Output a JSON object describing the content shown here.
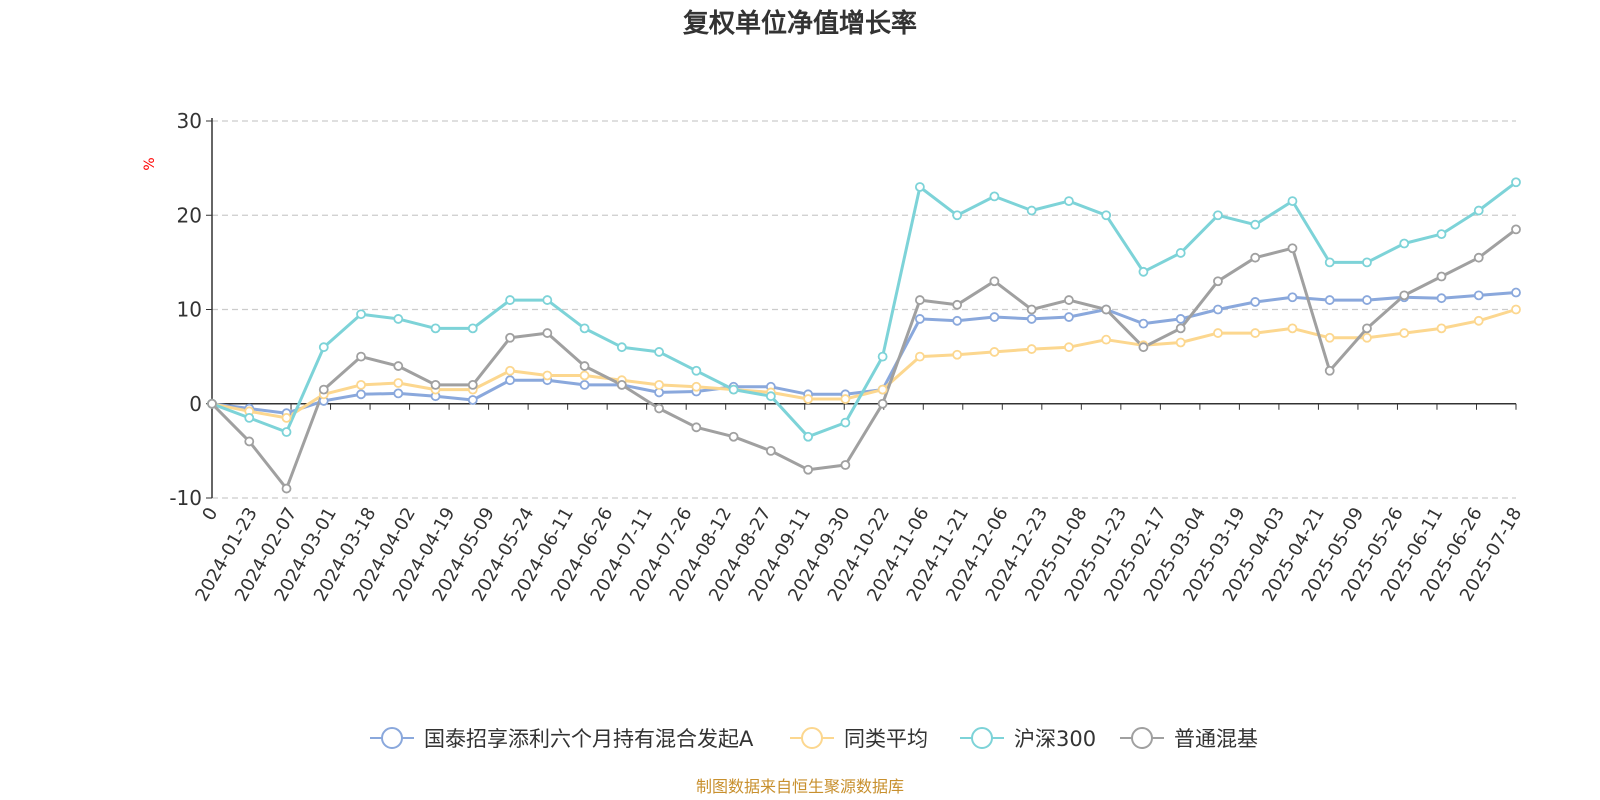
{
  "chart_data": {
    "type": "line",
    "title": "复权单位净值增长率",
    "ylabel": "%",
    "ylim": [
      -10,
      30
    ],
    "yticks": [
      -10,
      0,
      10,
      20,
      30
    ],
    "grid": true,
    "legend_position": "bottom",
    "x_tick_labels": [
      "0",
      "2024-01-23",
      "2024-02-07",
      "2024-03-01",
      "2024-03-18",
      "2024-04-02",
      "2024-04-19",
      "2024-05-09",
      "2024-05-24",
      "2024-06-11",
      "2024-06-26",
      "2024-07-11",
      "2024-07-26",
      "2024-08-12",
      "2024-08-27",
      "2024-09-11",
      "2024-09-30",
      "2024-10-22",
      "2024-11-06",
      "2024-11-21",
      "2024-12-06",
      "2024-12-23",
      "2025-01-08",
      "2025-01-23",
      "2025-02-17",
      "2025-03-04",
      "2025-03-19",
      "2025-04-03",
      "2025-04-21",
      "2025-05-09",
      "2025-05-26",
      "2025-06-11",
      "2025-06-26",
      "2025-07-18"
    ],
    "series": [
      {
        "name": "国泰招享添利六个月持有混合发起A",
        "color": "#8aa8dc",
        "values": [
          0,
          -0.5,
          -1.0,
          0.3,
          1.0,
          1.1,
          0.8,
          0.4,
          2.5,
          2.5,
          2.0,
          2.0,
          1.2,
          1.3,
          1.8,
          1.8,
          1.0,
          1.0,
          1.5,
          9.0,
          8.8,
          9.2,
          9.0,
          9.2,
          10.0,
          8.5,
          9.0,
          10.0,
          10.8,
          11.3,
          11.0,
          11.0,
          11.3,
          11.2,
          11.5,
          11.8
        ]
      },
      {
        "name": "同类平均",
        "color": "#fcd78f",
        "values": [
          0,
          -0.8,
          -1.5,
          1.0,
          2.0,
          2.2,
          1.5,
          1.5,
          3.5,
          3.0,
          3.0,
          2.5,
          2.0,
          1.8,
          1.5,
          1.2,
          0.5,
          0.5,
          1.5,
          5.0,
          5.2,
          5.5,
          5.8,
          6.0,
          6.8,
          6.2,
          6.5,
          7.5,
          7.5,
          8.0,
          7.0,
          7.0,
          7.5,
          8.0,
          8.8,
          10.0
        ]
      },
      {
        "name": "沪深300",
        "color": "#7dd3d8",
        "values": [
          0,
          -1.5,
          -3.0,
          6.0,
          9.5,
          9.0,
          8.0,
          8.0,
          11.0,
          11.0,
          8.0,
          6.0,
          5.5,
          3.5,
          1.5,
          0.8,
          -3.5,
          -2.0,
          5.0,
          23.0,
          20.0,
          22.0,
          20.5,
          21.5,
          20.0,
          14.0,
          16.0,
          20.0,
          19.0,
          21.5,
          15.0,
          15.0,
          17.0,
          18.0,
          20.5,
          23.5
        ]
      },
      {
        "name": "普通混基",
        "color": "#a0a0a0",
        "values": [
          0,
          -4.0,
          -9.0,
          1.5,
          5.0,
          4.0,
          2.0,
          2.0,
          7.0,
          7.5,
          4.0,
          2.0,
          -0.5,
          -2.5,
          -3.5,
          -5.0,
          -7.0,
          -6.5,
          0.0,
          11.0,
          10.5,
          13.0,
          10.0,
          11.0,
          10.0,
          6.0,
          8.0,
          13.0,
          15.5,
          16.5,
          3.5,
          8.0,
          11.5,
          13.5,
          15.5,
          18.5
        ]
      }
    ]
  },
  "legend": [
    {
      "label": "国泰招享添利六个月持有混合发起A",
      "color": "#8aa8dc"
    },
    {
      "label": "同类平均",
      "color": "#fcd78f"
    },
    {
      "label": "沪深300",
      "color": "#7dd3d8"
    },
    {
      "label": "普通混基",
      "color": "#a0a0a0"
    }
  ],
  "source": "制图数据来自恒生聚源数据库"
}
